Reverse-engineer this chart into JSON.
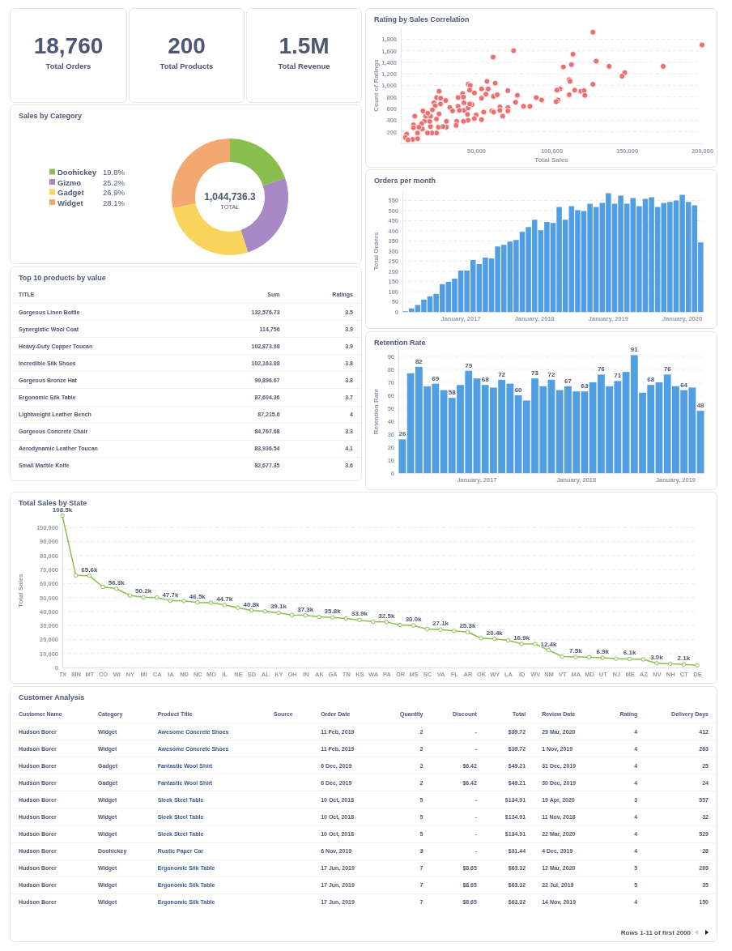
{
  "chart_data": [
    {
      "type": "other",
      "title": "Total Orders",
      "annotations": [
        "18,760"
      ]
    },
    {
      "type": "other",
      "title": "Total Products",
      "annotations": [
        "200"
      ]
    },
    {
      "type": "other",
      "title": "Total Revenue",
      "annotations": [
        "1.5M"
      ]
    },
    {
      "type": "scatter",
      "title": "Rating by Sales Correlation",
      "xlabel": "Total Sales",
      "ylabel": "Count of Ratings",
      "color": "#ed6e6e",
      "marker": "circle",
      "grid": "y",
      "xlim": [
        0,
        200000
      ],
      "xticks": [
        {
          "value": 50000,
          "label": "50,000"
        },
        {
          "value": 100000,
          "label": "100,000"
        },
        {
          "value": 150000,
          "label": "150,000"
        },
        {
          "value": 200000,
          "label": "200,000"
        }
      ],
      "ylim": [
        0,
        2000
      ],
      "yticks": [
        200,
        400,
        600,
        800,
        {
          "value": 1000,
          "label": "1,000"
        },
        {
          "value": 1200,
          "label": "1,200"
        },
        {
          "value": 1400,
          "label": "1,400"
        },
        {
          "value": 1600,
          "label": "1,600"
        },
        {
          "value": 1800,
          "label": "1,800"
        }
      ],
      "x": [
        127600,
        200000,
        74900,
        61300,
        114300,
        129700,
        138300,
        174200,
        113300,
        107900,
        148700,
        146900,
        111800,
        112400,
        127600,
        57200,
        62700,
        44800,
        46100,
        105700,
        103700,
        115400,
        119500,
        121700,
        122200,
        111800,
        53600,
        58000,
        45700,
        71100,
        77400,
        89900,
        93500,
        104300,
        103100,
        76200,
        61500,
        64000,
        56500,
        53600,
        48900,
        41000,
        41500,
        38000,
        25400,
        23800,
        26400,
        29800,
        22000,
        22800,
        32600,
        34400,
        38000,
        41900,
        42100,
        38900,
        44700,
        47300,
        45700,
        55000,
        60400,
        61600,
        65800,
        71100,
        65800,
        71100,
        67600,
        81500,
        85800,
        50000,
        48800,
        44300,
        44600,
        41600,
        53600,
        37100,
        36700,
        30300,
        30300,
        28100,
        23700,
        24900,
        23700,
        20600,
        17700,
        19700,
        19200,
        15600,
        16500,
        14700,
        13800,
        14300,
        19700,
        21000,
        17900,
        25400,
        26300,
        9300,
        8400,
        11100,
        7900,
        11100,
        3900,
        8400,
        12000,
        3000,
        4800
      ],
      "values": [
        1920,
        1700,
        1600,
        1490,
        1540,
        1420,
        1330,
        1330,
        1360,
        1320,
        1220,
        1160,
        1100,
        1070,
        1020,
        1070,
        1040,
        1020,
        1000,
        940,
        920,
        920,
        900,
        910,
        830,
        840,
        940,
        940,
        920,
        910,
        830,
        790,
        750,
        750,
        720,
        710,
        810,
        840,
        850,
        780,
        870,
        860,
        800,
        790,
        900,
        790,
        780,
        740,
        700,
        650,
        620,
        560,
        640,
        700,
        570,
        570,
        610,
        670,
        680,
        540,
        560,
        540,
        630,
        620,
        570,
        560,
        470,
        640,
        640,
        490,
        430,
        500,
        400,
        380,
        410,
        380,
        310,
        380,
        280,
        290,
        420,
        280,
        180,
        180,
        180,
        290,
        380,
        380,
        470,
        560,
        340,
        250,
        470,
        580,
        520,
        510,
        680,
        470,
        320,
        180,
        70,
        80,
        160,
        270,
        280,
        100,
        60
      ]
    },
    {
      "type": "donut",
      "title": "Sales by Category",
      "legend": "left",
      "categories": [
        "Doohickey",
        "Gizmo",
        "Gadget",
        "Widget"
      ],
      "values": [
        19.8,
        25.2,
        26.9,
        28.1
      ],
      "value_labels": [
        "19.8%",
        "25.2%",
        "26.9%",
        "28.1%"
      ],
      "colors": [
        "#88bf4d",
        "#a989c5",
        "#f9d45c",
        "#f2a86f"
      ],
      "annotations": [
        "1,044,736.3",
        "TOTAL"
      ]
    },
    {
      "type": "bar",
      "title": "Orders per month",
      "ylabel": "Total Orders",
      "color": "#509ee3",
      "grid": "y",
      "ylim": [
        0,
        600
      ],
      "yticks": [
        0,
        50,
        100,
        150,
        200,
        250,
        300,
        350,
        400,
        450,
        500,
        550
      ],
      "categories": [
        null,
        null,
        null,
        null,
        null,
        null,
        null,
        null,
        null,
        "January, 2017",
        null,
        null,
        null,
        null,
        null,
        null,
        null,
        null,
        null,
        null,
        null,
        "January, 2018",
        null,
        null,
        null,
        null,
        null,
        null,
        null,
        null,
        null,
        null,
        null,
        "January, 2019",
        null,
        null,
        null,
        null,
        null,
        null,
        null,
        null,
        null,
        null,
        null,
        "January, 2020",
        null,
        null,
        null
      ],
      "values": [
        3,
        17,
        34,
        61,
        77,
        89,
        137,
        148,
        164,
        204,
        204,
        256,
        236,
        268,
        264,
        323,
        331,
        347,
        355,
        395,
        419,
        455,
        403,
        444,
        439,
        518,
        455,
        522,
        502,
        498,
        534,
        518,
        538,
        586,
        534,
        574,
        534,
        562,
        522,
        558,
        566,
        518,
        538,
        543,
        550,
        578,
        543,
        526,
        343
      ]
    },
    {
      "type": "other",
      "title": "Top 10 products by value",
      "categories": [
        "TITLE",
        "Sum",
        "Ratings"
      ],
      "cell_labels": [
        [
          "Gorgeous Linen Bottle",
          "132,576.73",
          "3.5"
        ],
        [
          "Synergistic Wool Coat",
          "114,756",
          "3.9"
        ],
        [
          "Heavy-Duty Copper Toucan",
          "102,873.98",
          "3.9"
        ],
        [
          "Incredible Silk Shoes",
          "102,163.88",
          "3.8"
        ],
        [
          "Gorgeous Bronze Hat",
          "99,896.67",
          "3.8"
        ],
        [
          "Ergonomic Silk Table",
          "87,604.36",
          "3.7"
        ],
        [
          "Lightweight Leather Bench",
          "87,215.6",
          "4"
        ],
        [
          "Gorgeous Concrete Chair",
          "84,767.68",
          "3.3"
        ],
        [
          "Aerodynamic Leather Toucan",
          "83,936.54",
          "4.1"
        ],
        [
          "Small Marble Knife",
          "82,677.35",
          "3.6"
        ]
      ]
    },
    {
      "type": "bar",
      "title": "Retention Rate",
      "ylabel": "Retention Rate",
      "color": "#509ee3",
      "grid": "y",
      "ylim": [
        0,
        95
      ],
      "yticks": [
        0,
        10,
        20,
        30,
        40,
        50,
        60,
        70,
        80,
        90
      ],
      "categories": [
        null,
        null,
        null,
        null,
        null,
        null,
        null,
        null,
        null,
        "January, 2017",
        null,
        null,
        null,
        null,
        null,
        null,
        null,
        null,
        null,
        null,
        null,
        "January, 2018",
        null,
        null,
        null,
        null,
        null,
        null,
        null,
        null,
        null,
        null,
        null,
        "January, 2019",
        null,
        null,
        null
      ],
      "values": [
        26,
        77,
        82,
        67,
        69,
        64,
        58,
        68,
        79,
        73,
        68,
        66,
        72,
        69,
        60,
        56,
        73,
        67,
        72,
        64,
        67,
        63,
        63,
        70,
        76,
        67,
        71,
        78,
        91,
        62,
        68,
        70,
        76,
        67,
        64,
        66,
        48
      ],
      "value_labels": [
        "26",
        null,
        "82",
        null,
        "69",
        null,
        "58",
        null,
        "79",
        null,
        "68",
        null,
        "72",
        null,
        "60",
        null,
        "73",
        null,
        "72",
        null,
        "67",
        null,
        "63",
        null,
        "76",
        null,
        "71",
        null,
        "91",
        null,
        "68",
        null,
        "76",
        null,
        "64",
        null,
        "48"
      ]
    },
    {
      "type": "line",
      "title": "Total Sales by State",
      "ylabel": "Total Sales",
      "color": "#88bf4d",
      "marker": "circle",
      "grid": "y",
      "ylim": [
        0,
        110000
      ],
      "yticks": [
        0,
        {
          "value": 10000,
          "label": "10,000"
        },
        {
          "value": 20000,
          "label": "20,000"
        },
        {
          "value": 30000,
          "label": "30,000"
        },
        {
          "value": 40000,
          "label": "40,000"
        },
        {
          "value": 50000,
          "label": "50,000"
        },
        {
          "value": 60000,
          "label": "60,000"
        },
        {
          "value": 70000,
          "label": "70,000"
        },
        {
          "value": 80000,
          "label": "80,000"
        },
        {
          "value": 90000,
          "label": "90,000"
        },
        {
          "value": 100000,
          "label": "100,000"
        }
      ],
      "categories": [
        "TX",
        "MN",
        "MT",
        "CO",
        "WI",
        "NY",
        "MI",
        "CA",
        "IA",
        "ND",
        "NC",
        "MO",
        "IL",
        "NE",
        "SD",
        "AL",
        "KY",
        "OH",
        "IN",
        "AK",
        "GA",
        "TN",
        "KS",
        "WA",
        "PA",
        "OR",
        "MS",
        "SC",
        "VA",
        "FL",
        "AR",
        "OK",
        "WY",
        "LA",
        "ID",
        "WV",
        "NM",
        "VT",
        "MA",
        "MD",
        "UT",
        "NJ",
        "ME",
        "AZ",
        "NV",
        "NH",
        "CT",
        "DE"
      ],
      "values": [
        108500,
        65800,
        65600,
        57600,
        56300,
        51500,
        50200,
        50000,
        47700,
        47600,
        46500,
        46300,
        44700,
        42700,
        40800,
        40100,
        39100,
        37500,
        37300,
        36200,
        35800,
        35000,
        33900,
        32700,
        32500,
        30400,
        30000,
        27500,
        27100,
        26200,
        25300,
        21000,
        20400,
        19400,
        16900,
        16800,
        12400,
        7800,
        7500,
        7400,
        6900,
        6300,
        6100,
        5800,
        3000,
        2600,
        2100,
        1600
      ],
      "value_labels": [
        "108.5k",
        null,
        "65.6k",
        null,
        "56.3k",
        null,
        "50.2k",
        null,
        "47.7k",
        null,
        "46.5k",
        null,
        "44.7k",
        null,
        "40.8k",
        null,
        "39.1k",
        null,
        "37.3k",
        null,
        "35.8k",
        null,
        "33.9k",
        null,
        "32.5k",
        null,
        "30.0k",
        null,
        "27.1k",
        null,
        "25.3k",
        null,
        "20.4k",
        null,
        "16.9k",
        null,
        "12.4k",
        null,
        "7.5k",
        null,
        "6.9k",
        null,
        "6.1k",
        null,
        "3.0k",
        null,
        "2.1k",
        null
      ]
    },
    {
      "type": "other",
      "title": "Customer Analysis",
      "categories": [
        "Customer Name",
        "Category",
        "Product Title",
        "Source",
        "Order Date",
        "Quantity",
        "Discount",
        "Total",
        "Review Date",
        "Rating",
        "Delivery Days"
      ],
      "annotations": [
        "Rows 1-11 of first 2000"
      ],
      "cell_labels": [
        [
          "Hudson Borer",
          "Widget",
          "Awesome Concrete Shoes",
          null,
          "11 Feb, 2019",
          "2",
          "-",
          "$39.72",
          "29 Mar, 2020",
          "4",
          "412"
        ],
        [
          "Hudson Borer",
          "Widget",
          "Awesome Concrete Shoes",
          null,
          "11 Feb, 2019",
          "2",
          "-",
          "$39.72",
          "1 Nov, 2019",
          "4",
          "263"
        ],
        [
          "Hudson Borer",
          "Gadget",
          "Fantastic Wool Shirt",
          null,
          "6 Dec, 2019",
          "2",
          "$6.42",
          "$49.21",
          "31 Dec, 2019",
          "4",
          "25"
        ],
        [
          "Hudson Borer",
          "Gadget",
          "Fantastic Wool Shirt",
          null,
          "6 Dec, 2019",
          "2",
          "$6.42",
          "$49.21",
          "30 Dec, 2019",
          "4",
          "24"
        ],
        [
          "Hudson Borer",
          "Widget",
          "Sleek Steel Table",
          null,
          "10 Oct, 2018",
          "5",
          "-",
          "$134.91",
          "19 Apr, 2020",
          "3",
          "557"
        ],
        [
          "Hudson Borer",
          "Widget",
          "Sleek Steel Table",
          null,
          "10 Oct, 2018",
          "5",
          "-",
          "$134.91",
          "11 Nov, 2018",
          "4",
          "32"
        ],
        [
          "Hudson Borer",
          "Widget",
          "Sleek Steel Table",
          null,
          "10 Oct, 2018",
          "5",
          "-",
          "$134.91",
          "22 Mar, 2020",
          "4",
          "529"
        ],
        [
          "Hudson Borer",
          "Doohickey",
          "Rustic Paper Car",
          null,
          "6 Nov, 2019",
          "3",
          "-",
          "$31.44",
          "4 Dec, 2019",
          "4",
          "28"
        ],
        [
          "Hudson Borer",
          "Widget",
          "Ergonomic Silk Table",
          null,
          "17 Jun, 2019",
          "7",
          "$8.65",
          "$63.32",
          "12 Mar, 2020",
          "5",
          "269"
        ],
        [
          "Hudson Borer",
          "Widget",
          "Ergonomic Silk Table",
          null,
          "17 Jun, 2019",
          "7",
          "$8.65",
          "$63.32",
          "22 Jul, 2019",
          "5",
          "35"
        ],
        [
          "Hudson Borer",
          "Widget",
          "Ergonomic Silk Table",
          null,
          "17 Jun, 2019",
          "7",
          "$8.65",
          "$63.32",
          "14 Nov, 2019",
          "4",
          "150"
        ]
      ]
    }
  ]
}
